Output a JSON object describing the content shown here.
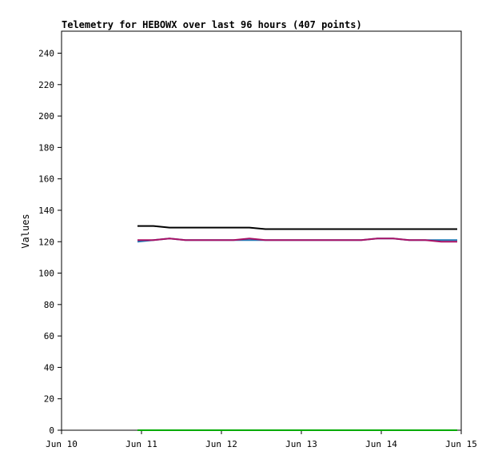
{
  "chart_data": {
    "type": "line",
    "title": "Telemetry for HEBOWX over last 96 hours (407 points)",
    "ylabel": "Values",
    "xlabel": "",
    "ylim": [
      0,
      254
    ],
    "xlim": [
      "Jun 10",
      "Jun 15"
    ],
    "y_ticks": [
      0,
      20,
      40,
      60,
      80,
      100,
      120,
      140,
      160,
      180,
      200,
      220,
      240
    ],
    "x_ticks": [
      "Jun 10",
      "Jun 11",
      "Jun 12",
      "Jun 13",
      "Jun 14",
      "Jun 15"
    ],
    "x_tick_days": [
      0,
      1,
      2,
      3,
      4,
      5
    ],
    "grid": false,
    "legend": "none",
    "series": [
      {
        "color": "#000000",
        "x_days": [
          0.95,
          1.15,
          1.35,
          1.55,
          1.75,
          1.95,
          2.15,
          2.35,
          2.55,
          2.75,
          2.95,
          3.15,
          3.35,
          3.55,
          3.75,
          3.95,
          4.15,
          4.35,
          4.55,
          4.75,
          4.95
        ],
        "values": [
          130,
          130,
          129,
          129,
          129,
          129,
          129,
          129,
          128,
          128,
          128,
          128,
          128,
          128,
          128,
          128,
          128,
          128,
          128,
          128,
          128
        ]
      },
      {
        "color": "#1f77b4",
        "x_days": [
          0.95,
          1.15,
          1.35,
          1.55,
          1.75,
          1.95,
          2.15,
          2.35,
          2.55,
          2.75,
          2.95,
          3.15,
          3.35,
          3.55,
          3.75,
          3.95,
          4.15,
          4.35,
          4.55,
          4.75,
          4.95
        ],
        "values": [
          120,
          121,
          122,
          121,
          121,
          121,
          121,
          121,
          121,
          121,
          121,
          121,
          121,
          121,
          121,
          122,
          122,
          121,
          121,
          121,
          121
        ]
      },
      {
        "color": "#aa1166",
        "x_days": [
          0.95,
          1.15,
          1.35,
          1.55,
          1.75,
          1.95,
          2.15,
          2.35,
          2.55,
          2.75,
          2.95,
          3.15,
          3.35,
          3.55,
          3.75,
          3.95,
          4.15,
          4.35,
          4.55,
          4.75,
          4.95
        ],
        "values": [
          121,
          121,
          122,
          121,
          121,
          121,
          121,
          122,
          121,
          121,
          121,
          121,
          121,
          121,
          121,
          122,
          122,
          121,
          121,
          120,
          120
        ]
      },
      {
        "color": "#00aa00",
        "x_days": [
          0.95,
          4.95
        ],
        "values": [
          0,
          0
        ]
      }
    ]
  }
}
